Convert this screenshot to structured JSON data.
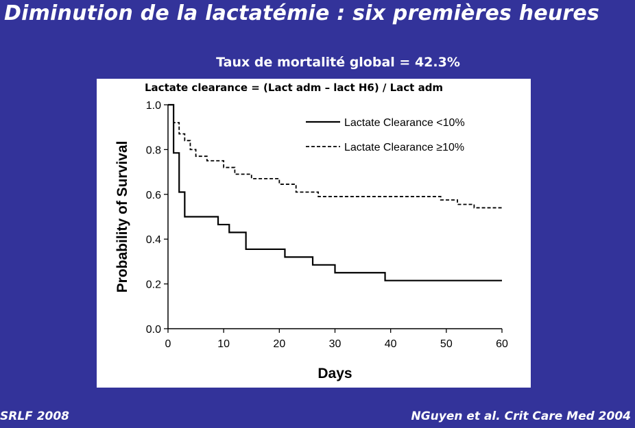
{
  "slide": {
    "title": "Diminution de la lactatémie : six premières heures",
    "subtitle": "Taux de mortalité global = 42.3%",
    "formula": "Lactate clearance = (Lact adm – lact H6) / Lact adm",
    "footer_left": "SRLF 2008",
    "footer_right": "NGuyen et al. Crit Care Med 2004"
  },
  "colors": {
    "background": "#33339a",
    "panel": "#ffffff",
    "text": "#ffffff",
    "ink": "#000000"
  },
  "chart_data": {
    "type": "line",
    "step": true,
    "xlabel": "Days",
    "ylabel": "Probability of Survival",
    "xlim": [
      0,
      60
    ],
    "ylim": [
      0,
      1.0
    ],
    "xticks": [
      "0",
      "10",
      "20",
      "30",
      "40",
      "50",
      "60"
    ],
    "yticks": [
      "0.0",
      "0.2",
      "0.4",
      "0.6",
      "0.8",
      "1.0"
    ],
    "grid": false,
    "legend_position": "top-right",
    "series": [
      {
        "name": "Lactate Clearance <10%",
        "style": "solid",
        "x": [
          0,
          1,
          2,
          3,
          9,
          11,
          14,
          21,
          26,
          30,
          39,
          60
        ],
        "y": [
          1.0,
          0.785,
          0.61,
          0.5,
          0.465,
          0.43,
          0.355,
          0.32,
          0.285,
          0.25,
          0.215,
          0.215
        ]
      },
      {
        "name": "Lactate Clearance ≥10%",
        "style": "dashed",
        "x": [
          0,
          1,
          2,
          3,
          4,
          5,
          7,
          10,
          12,
          15,
          20,
          23,
          27,
          49,
          52,
          55,
          60
        ],
        "y": [
          1.0,
          0.92,
          0.87,
          0.84,
          0.8,
          0.77,
          0.75,
          0.72,
          0.69,
          0.67,
          0.645,
          0.61,
          0.59,
          0.575,
          0.555,
          0.54,
          0.535
        ]
      }
    ]
  }
}
